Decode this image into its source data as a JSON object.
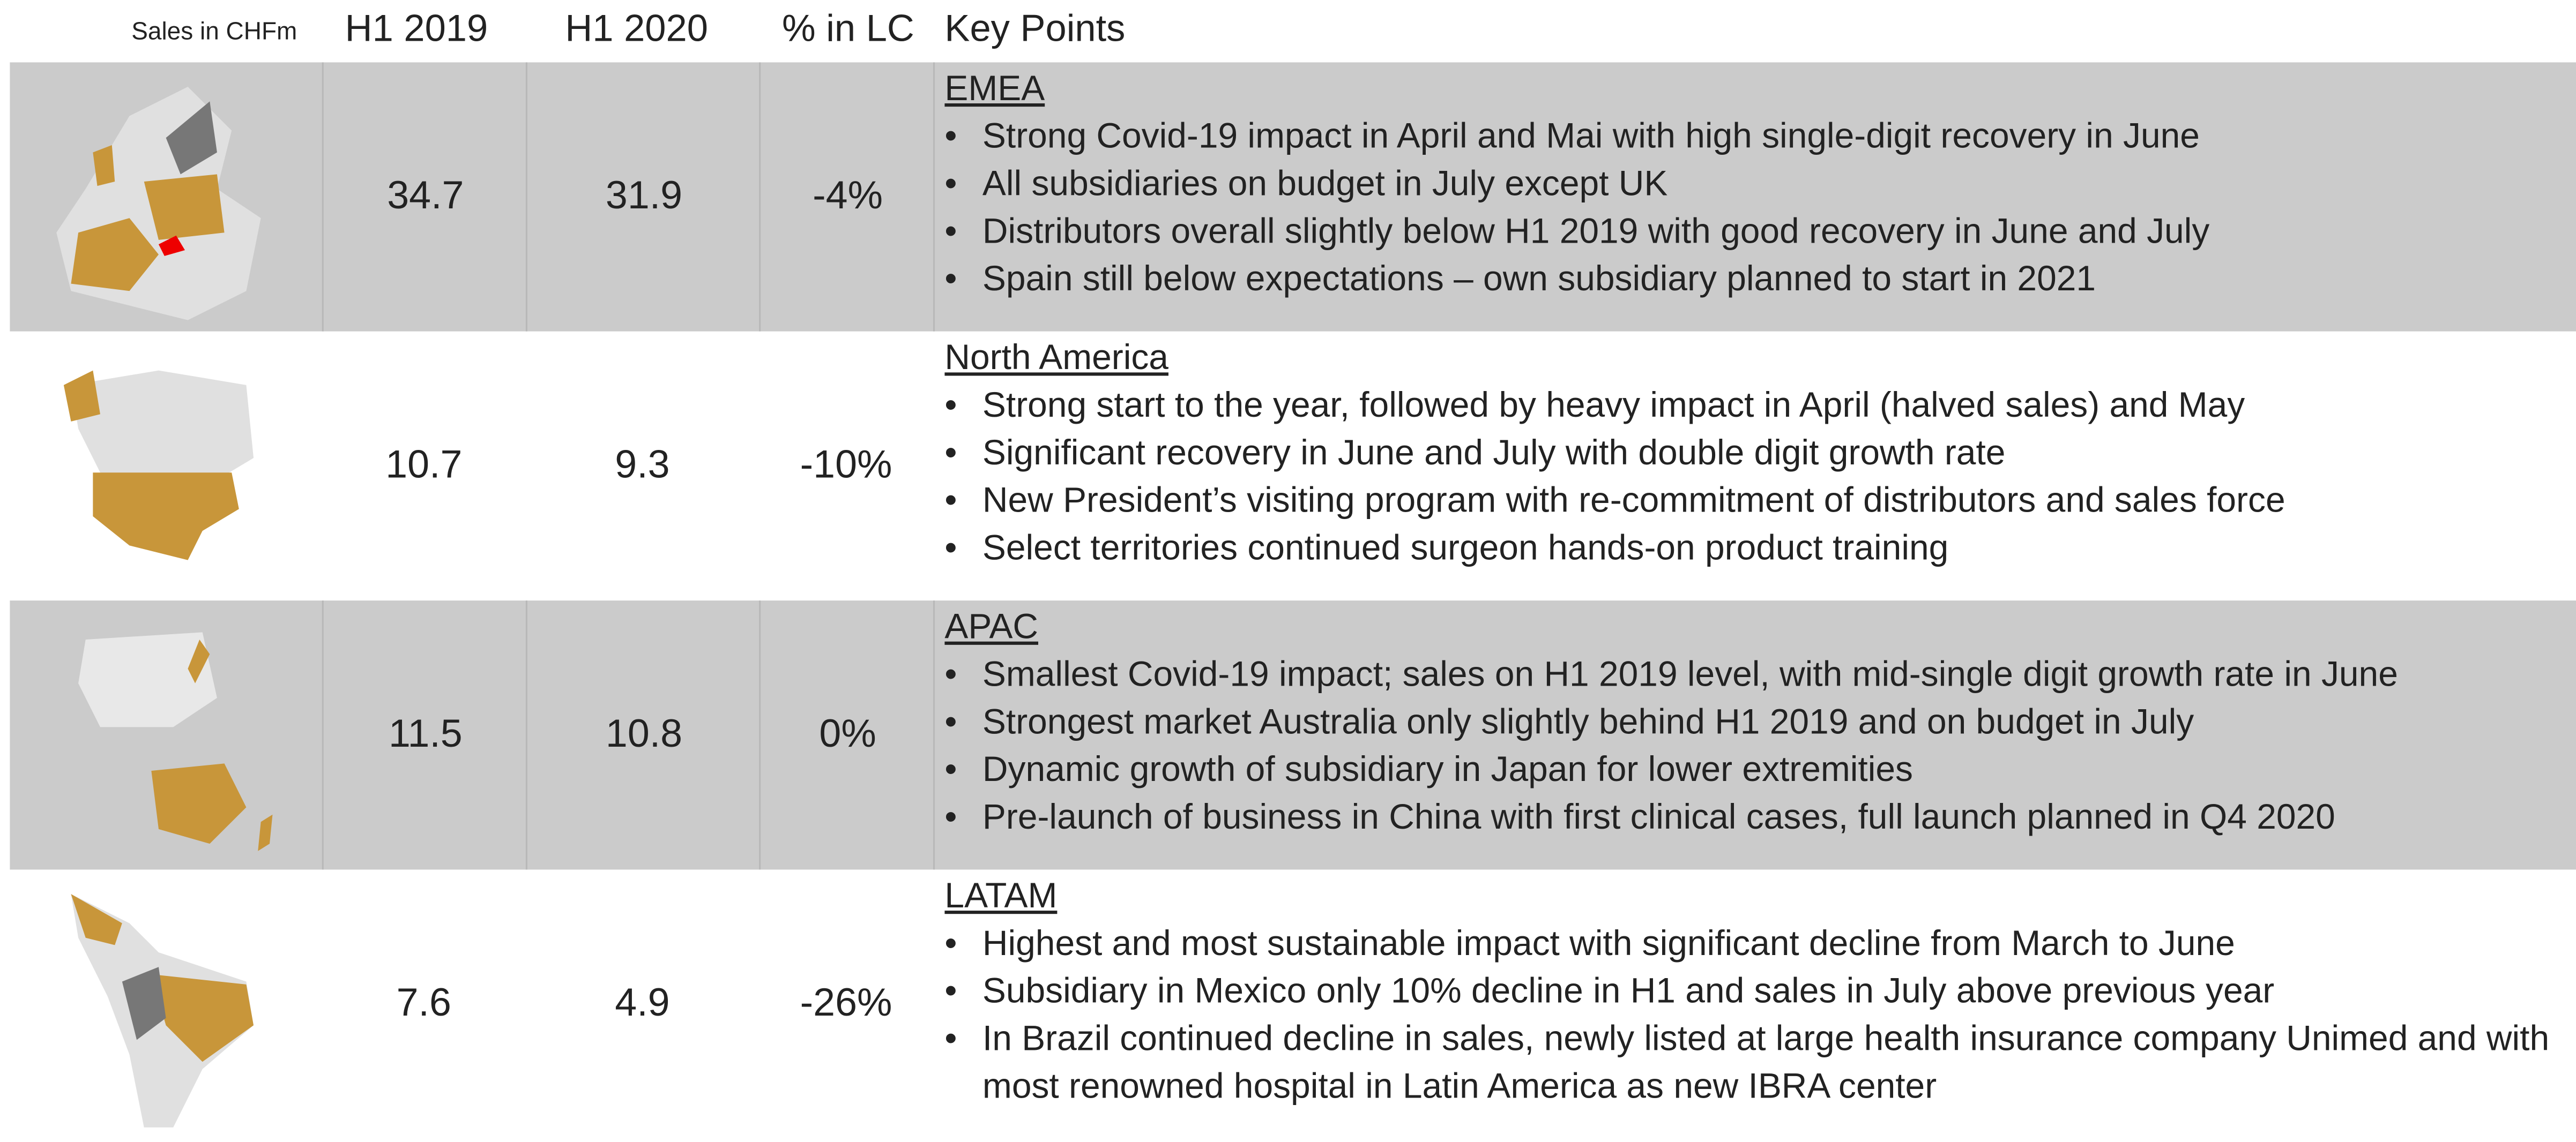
{
  "header": {
    "label": "Sales in CHFm",
    "columns": [
      "H1 2019",
      "H1 2020",
      "% in LC",
      "Key Points"
    ]
  },
  "rows": [
    {
      "region": "EMEA",
      "h1_2019": "34.7",
      "h1_2020": "31.9",
      "pct_lc": "-4%",
      "points": [
        "Strong Covid-19 impact in April and Mai with high single-digit recovery in June",
        "All subsidiaries on budget in July except UK",
        "Distributors overall slightly below H1 2019 with good recovery in June and July",
        "Spain still below expectations – own subsidiary planned to start in 2021"
      ]
    },
    {
      "region": "North America",
      "h1_2019": "10.7",
      "h1_2020": "9.3",
      "pct_lc": "-10%",
      "points": [
        "Strong start to the year, followed by heavy impact in April (halved sales) and May",
        "Significant recovery in June and July with double digit growth rate",
        "New President’s visiting program with re-commitment of distributors and sales force",
        "Select territories continued surgeon hands-on product training"
      ]
    },
    {
      "region": "APAC",
      "h1_2019": "11.5",
      "h1_2020": "10.8",
      "pct_lc": "0%",
      "points": [
        "Smallest Covid-19 impact; sales on H1 2019 level, with mid-single digit growth rate in June",
        "Strongest market Australia only slightly behind H1 2019 and on budget in July",
        "Dynamic growth of subsidiary in Japan for lower extremities",
        "Pre-launch of business in China with first clinical cases, full launch planned in Q4 2020"
      ]
    },
    {
      "region": "LATAM",
      "h1_2019": "7.6",
      "h1_2020": "4.9",
      "pct_lc": "-26%",
      "points": [
        "Highest and most sustainable impact with significant decline from March to June",
        "Subsidiary in Mexico only 10% decline in H1 and sales in July above previous year",
        "In Brazil continued decline in sales, newly listed at large health insurance company Unimed and with most renowned hospital in Latin America as new IBRA center"
      ]
    }
  ]
}
